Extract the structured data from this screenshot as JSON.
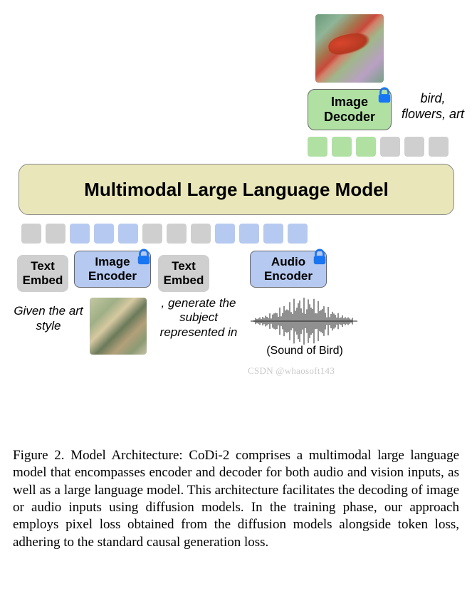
{
  "output": {
    "decoder_label": "Image\nDecoder",
    "decoder_bg": "#b0e1a3",
    "caption": "bird, flowers, art"
  },
  "tokens_top": [
    {
      "color": "green"
    },
    {
      "color": "green"
    },
    {
      "color": "green"
    },
    {
      "color": "grey"
    },
    {
      "color": "grey"
    },
    {
      "color": "grey"
    }
  ],
  "llm": {
    "label": "Multimodal Large Language Model",
    "bg": "#e9e7b9"
  },
  "tokens_bot": [
    {
      "color": "grey"
    },
    {
      "color": "grey"
    },
    {
      "color": "blue"
    },
    {
      "color": "blue"
    },
    {
      "color": "blue"
    },
    {
      "color": "grey"
    },
    {
      "color": "grey"
    },
    {
      "color": "grey"
    },
    {
      "color": "blue"
    },
    {
      "color": "blue"
    },
    {
      "color": "blue"
    },
    {
      "color": "blue"
    }
  ],
  "row": {
    "text_embed": "Text\nEmbed",
    "image_encoder": "Image\nEncoder",
    "audio_encoder": "Audio\nEncoder",
    "text_embed_bg": "#cfcfcf",
    "encoder_bg": "#b6c9f0"
  },
  "inputs": {
    "prompt1": "Given the art style",
    "prompt2": ", generate the subject represented in",
    "sound_label": "(Sound of Bird)"
  },
  "lock_color": "#1976f2",
  "waveform_color": "#222222",
  "caption": "Figure 2. Model Architecture: CoDi-2 comprises a multimodal large language model that encompasses encoder and decoder for both audio and vision inputs, as well as a large language model. This architecture facilitates the decoding of image or audio inputs using diffusion models. In the training phase, our approach employs pixel loss obtained from the diffusion models alongside token loss, adhering to the standard causal generation loss.",
  "watermark": "CSDN @whaosoft143"
}
